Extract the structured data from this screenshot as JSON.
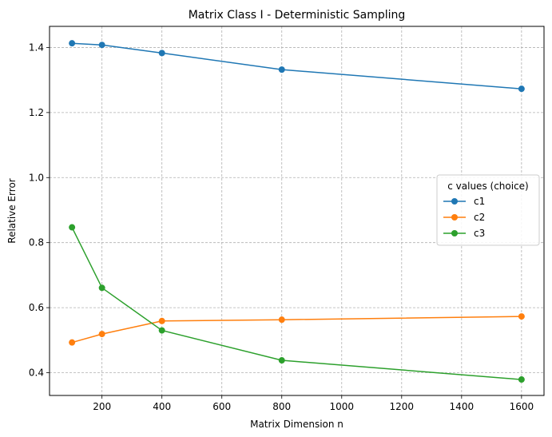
{
  "chart_data": {
    "type": "line",
    "title": "Matrix Class I - Deterministic Sampling",
    "xlabel": "Matrix Dimension n",
    "ylabel": "Relative Error",
    "x": [
      100,
      200,
      400,
      800,
      1600
    ],
    "xlim": [
      25,
      1675
    ],
    "ylim": [
      0.33,
      1.465
    ],
    "xticks": [
      200,
      400,
      600,
      800,
      1000,
      1200,
      1400,
      1600
    ],
    "xtick_labels": [
      "200",
      "400",
      "600",
      "800",
      "1000",
      "1200",
      "1400",
      "1600"
    ],
    "yticks": [
      0.4,
      0.6,
      0.8,
      1.0,
      1.2,
      1.4
    ],
    "ytick_labels": [
      "0.4",
      "0.6",
      "0.8",
      "1.0",
      "1.2",
      "1.4"
    ],
    "grid": true,
    "grid_style": "dashed",
    "marker": "circle",
    "series": [
      {
        "name": "c1",
        "color": "#1f77b4",
        "values": [
          1.413,
          1.408,
          1.383,
          1.332,
          1.273
        ]
      },
      {
        "name": "c2",
        "color": "#ff7f0e",
        "values": [
          0.493,
          0.519,
          0.559,
          0.563,
          0.573
        ]
      },
      {
        "name": "c3",
        "color": "#2ca02c",
        "values": [
          0.847,
          0.661,
          0.53,
          0.438,
          0.379
        ]
      }
    ],
    "legend": {
      "title": "c values (choice)",
      "placement": "center-right"
    }
  }
}
